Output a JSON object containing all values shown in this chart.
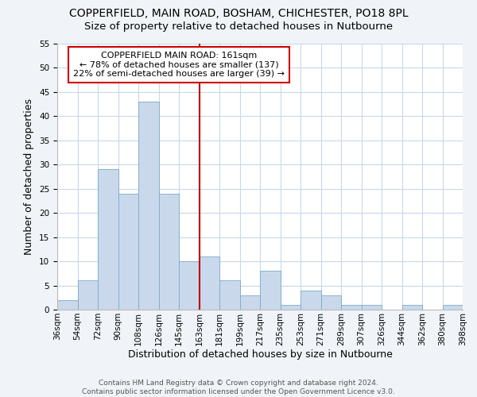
{
  "title": "COPPERFIELD, MAIN ROAD, BOSHAM, CHICHESTER, PO18 8PL",
  "subtitle": "Size of property relative to detached houses in Nutbourne",
  "xlabel": "Distribution of detached houses by size in Nutbourne",
  "ylabel": "Number of detached properties",
  "bar_color": "#c9d9eb",
  "bar_edge_color": "#7aaac8",
  "bins": [
    "36sqm",
    "54sqm",
    "72sqm",
    "90sqm",
    "108sqm",
    "126sqm",
    "145sqm",
    "163sqm",
    "181sqm",
    "199sqm",
    "217sqm",
    "235sqm",
    "253sqm",
    "271sqm",
    "289sqm",
    "307sqm",
    "326sqm",
    "344sqm",
    "362sqm",
    "380sqm",
    "398sqm"
  ],
  "values": [
    2,
    6,
    29,
    24,
    43,
    24,
    10,
    11,
    6,
    3,
    8,
    1,
    4,
    3,
    1,
    1,
    0,
    1,
    0,
    1
  ],
  "ylim": [
    0,
    55
  ],
  "yticks": [
    0,
    5,
    10,
    15,
    20,
    25,
    30,
    35,
    40,
    45,
    50,
    55
  ],
  "annotation_title": "COPPERFIELD MAIN ROAD: 161sqm",
  "annotation_line1": "← 78% of detached houses are smaller (137)",
  "annotation_line2": "22% of semi-detached houses are larger (39) →",
  "footer1": "Contains HM Land Registry data © Crown copyright and database right 2024.",
  "footer2": "Contains public sector information licensed under the Open Government Licence v3.0.",
  "background_color": "#f0f4f8",
  "plot_bg_color": "#ffffff",
  "grid_color": "#c8d8ea",
  "vline_color": "#bb0000",
  "annotation_box_color": "#ffffff",
  "annotation_box_edge": "#cc0000",
  "title_fontsize": 10,
  "subtitle_fontsize": 9.5,
  "axis_label_fontsize": 9,
  "tick_fontsize": 7.5,
  "annotation_fontsize": 8,
  "footer_fontsize": 6.5
}
